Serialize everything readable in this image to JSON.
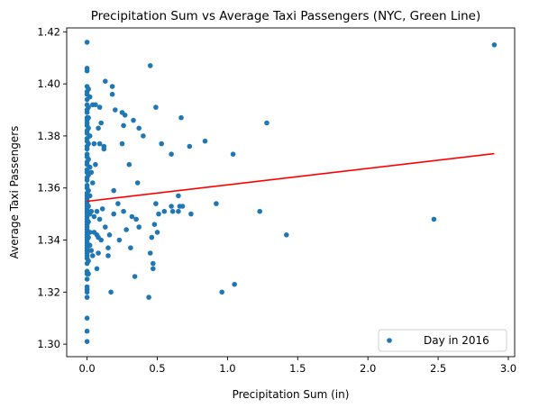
{
  "chart_data": {
    "type": "scatter",
    "title": "Precipitation Sum vs Average Taxi Passengers (NYC, Green Line)",
    "xlabel": "Precipitation Sum (in)",
    "ylabel": "Average Taxi Passengers",
    "xlim": [
      -0.145,
      3.045
    ],
    "ylim": [
      1.2952,
      1.4215
    ],
    "xticks": [
      0.0,
      0.5,
      1.0,
      1.5,
      2.0,
      2.5,
      3.0
    ],
    "xtick_labels": [
      "0.0",
      "0.5",
      "1.0",
      "1.5",
      "2.0",
      "2.5",
      "3.0"
    ],
    "yticks": [
      1.3,
      1.32,
      1.34,
      1.36,
      1.38,
      1.4,
      1.42
    ],
    "ytick_labels": [
      "1.30",
      "1.32",
      "1.34",
      "1.36",
      "1.38",
      "1.40",
      "1.42"
    ],
    "grid": false,
    "legend": {
      "position": "bottom-right",
      "entries": [
        "Day in 2016"
      ]
    },
    "colors": {
      "points": "#1f77b4",
      "fit": "#ff0000"
    },
    "fit_line": {
      "x": [
        0.0,
        2.9
      ],
      "y": [
        1.3549,
        1.3732
      ]
    },
    "series": [
      {
        "name": "Day in 2016",
        "points": [
          [
            0,
            1.416
          ],
          [
            0,
            1.406
          ],
          [
            0,
            1.405
          ],
          [
            0,
            1.399
          ],
          [
            0,
            1.397
          ],
          [
            0,
            1.396
          ],
          [
            0,
            1.394
          ],
          [
            0,
            1.392
          ],
          [
            0,
            1.39
          ],
          [
            0,
            1.389
          ],
          [
            0,
            1.387
          ],
          [
            0,
            1.386
          ],
          [
            0,
            1.385
          ],
          [
            0,
            1.384
          ],
          [
            0,
            1.382
          ],
          [
            0,
            1.381
          ],
          [
            0,
            1.379
          ],
          [
            0,
            1.378
          ],
          [
            0,
            1.376
          ],
          [
            0,
            1.375
          ],
          [
            0,
            1.373
          ],
          [
            0,
            1.372
          ],
          [
            0,
            1.37
          ],
          [
            0,
            1.369
          ],
          [
            0,
            1.367
          ],
          [
            0,
            1.366
          ],
          [
            0,
            1.364
          ],
          [
            0,
            1.363
          ],
          [
            0,
            1.361
          ],
          [
            0,
            1.36
          ],
          [
            0,
            1.358
          ],
          [
            0,
            1.357
          ],
          [
            0,
            1.356
          ],
          [
            0,
            1.355
          ],
          [
            0,
            1.354
          ],
          [
            0,
            1.353
          ],
          [
            0,
            1.352
          ],
          [
            0,
            1.351
          ],
          [
            0,
            1.35
          ],
          [
            0,
            1.349
          ],
          [
            0,
            1.348
          ],
          [
            0,
            1.347
          ],
          [
            0,
            1.346
          ],
          [
            0,
            1.345
          ],
          [
            0,
            1.344
          ],
          [
            0,
            1.343
          ],
          [
            0,
            1.342
          ],
          [
            0,
            1.341
          ],
          [
            0,
            1.34
          ],
          [
            0,
            1.339
          ],
          [
            0,
            1.338
          ],
          [
            0,
            1.337
          ],
          [
            0,
            1.336
          ],
          [
            0,
            1.335
          ],
          [
            0,
            1.334
          ],
          [
            0,
            1.333
          ],
          [
            0,
            1.331
          ],
          [
            0,
            1.328
          ],
          [
            0,
            1.327
          ],
          [
            0,
            1.325
          ],
          [
            0,
            1.322
          ],
          [
            0,
            1.321
          ],
          [
            0,
            1.32
          ],
          [
            0,
            1.318
          ],
          [
            0,
            1.31
          ],
          [
            0,
            1.305
          ],
          [
            0,
            1.301
          ],
          [
            0.01,
            1.398
          ],
          [
            0.01,
            1.391
          ],
          [
            0.01,
            1.387
          ],
          [
            0.01,
            1.383
          ],
          [
            0.01,
            1.377
          ],
          [
            0.01,
            1.371
          ],
          [
            0.01,
            1.365
          ],
          [
            0.01,
            1.359
          ],
          [
            0.01,
            1.353
          ],
          [
            0.01,
            1.347
          ],
          [
            0.01,
            1.341
          ],
          [
            0.01,
            1.336
          ],
          [
            0.01,
            1.332
          ],
          [
            0.01,
            1.327
          ],
          [
            0.02,
            1.395
          ],
          [
            0.02,
            1.38
          ],
          [
            0.02,
            1.368
          ],
          [
            0.02,
            1.357
          ],
          [
            0.02,
            1.35
          ],
          [
            0.02,
            1.343
          ],
          [
            0.02,
            1.338
          ],
          [
            0.03,
            1.366
          ],
          [
            0.03,
            1.351
          ],
          [
            0.03,
            1.336
          ],
          [
            0.04,
            1.392
          ],
          [
            0.05,
            1.377
          ],
          [
            0.04,
            1.362
          ],
          [
            0.05,
            1.349
          ],
          [
            0.05,
            1.343
          ],
          [
            0.04,
            1.334
          ],
          [
            0.06,
            1.392
          ],
          [
            0.06,
            1.369
          ],
          [
            0.07,
            1.351
          ],
          [
            0.07,
            1.342
          ],
          [
            0.08,
            1.335
          ],
          [
            0.08,
            1.383
          ],
          [
            0.09,
            1.391
          ],
          [
            0.07,
            1.329
          ],
          [
            0.09,
            1.377
          ],
          [
            0.08,
            1.341
          ],
          [
            0.09,
            1.348
          ],
          [
            0.1,
            1.385
          ],
          [
            0.1,
            1.34
          ],
          [
            0.11,
            1.352
          ],
          [
            0.12,
            1.376
          ],
          [
            0.12,
            1.375
          ],
          [
            0.13,
            1.401
          ],
          [
            0.13,
            1.345
          ],
          [
            0.15,
            1.337
          ],
          [
            0.15,
            1.334
          ],
          [
            0.17,
            1.32
          ],
          [
            0.16,
            1.342
          ],
          [
            0.18,
            1.399
          ],
          [
            0.18,
            1.396
          ],
          [
            0.19,
            1.359
          ],
          [
            0.19,
            1.35
          ],
          [
            0.2,
            1.39
          ],
          [
            0.22,
            1.354
          ],
          [
            0.23,
            1.34
          ],
          [
            0.25,
            1.389
          ],
          [
            0.25,
            1.377
          ],
          [
            0.26,
            1.351
          ],
          [
            0.26,
            1.384
          ],
          [
            0.27,
            1.388
          ],
          [
            0.28,
            1.344
          ],
          [
            0.3,
            1.369
          ],
          [
            0.31,
            1.337
          ],
          [
            0.32,
            1.349
          ],
          [
            0.33,
            1.386
          ],
          [
            0.34,
            1.326
          ],
          [
            0.35,
            1.348
          ],
          [
            0.36,
            1.362
          ],
          [
            0.37,
            1.383
          ],
          [
            0.37,
            1.345
          ],
          [
            0.4,
            1.38
          ],
          [
            0.44,
            1.318
          ],
          [
            0.45,
            1.335
          ],
          [
            0.45,
            1.407
          ],
          [
            0.46,
            1.341
          ],
          [
            0.47,
            1.331
          ],
          [
            0.47,
            1.329
          ],
          [
            0.48,
            1.346
          ],
          [
            0.49,
            1.354
          ],
          [
            0.49,
            1.391
          ],
          [
            0.5,
            1.343
          ],
          [
            0.51,
            1.35
          ],
          [
            0.53,
            1.377
          ],
          [
            0.55,
            1.351
          ],
          [
            0.6,
            1.373
          ],
          [
            0.6,
            1.353
          ],
          [
            0.61,
            1.351
          ],
          [
            0.65,
            1.351
          ],
          [
            0.65,
            1.357
          ],
          [
            0.66,
            1.353
          ],
          [
            0.67,
            1.387
          ],
          [
            0.68,
            1.353
          ],
          [
            0.73,
            1.376
          ],
          [
            0.74,
            1.35
          ],
          [
            0.84,
            1.378
          ],
          [
            0.92,
            1.354
          ],
          [
            0.96,
            1.32
          ],
          [
            1.04,
            1.373
          ],
          [
            1.05,
            1.323
          ],
          [
            1.23,
            1.351
          ],
          [
            1.28,
            1.385
          ],
          [
            1.42,
            1.342
          ],
          [
            2.47,
            1.348
          ],
          [
            2.9,
            1.415
          ]
        ]
      }
    ]
  }
}
